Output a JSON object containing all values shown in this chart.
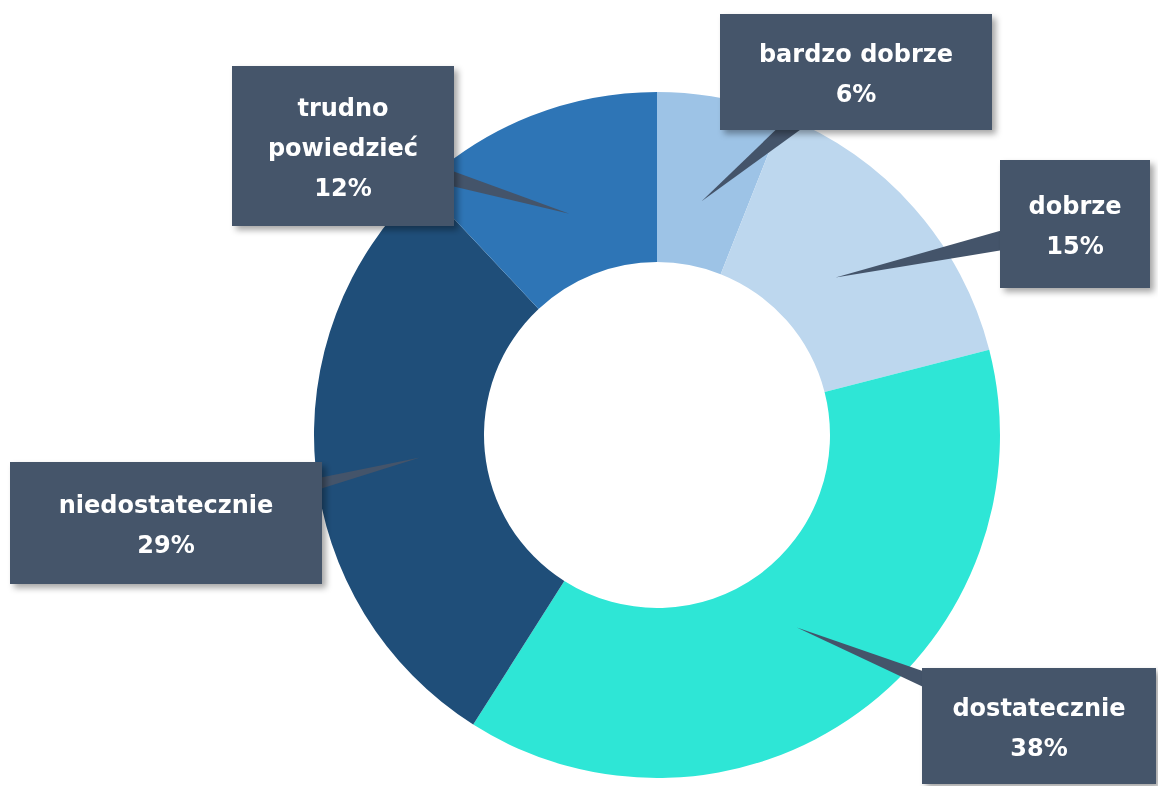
{
  "chart_data": {
    "type": "donut",
    "categories": [
      "bardzo dobrze",
      "dobrze",
      "dostatecznie",
      "niedostatecznie",
      "trudno powiedzieć"
    ],
    "values": [
      6,
      15,
      38,
      29,
      12
    ],
    "value_labels": [
      "6%",
      "15%",
      "38%",
      "29%",
      "12%"
    ],
    "colors": [
      "#9dc3e6",
      "#bdd7ee",
      "#2ee6d6",
      "#1f4e79",
      "#2e75b6"
    ]
  }
}
